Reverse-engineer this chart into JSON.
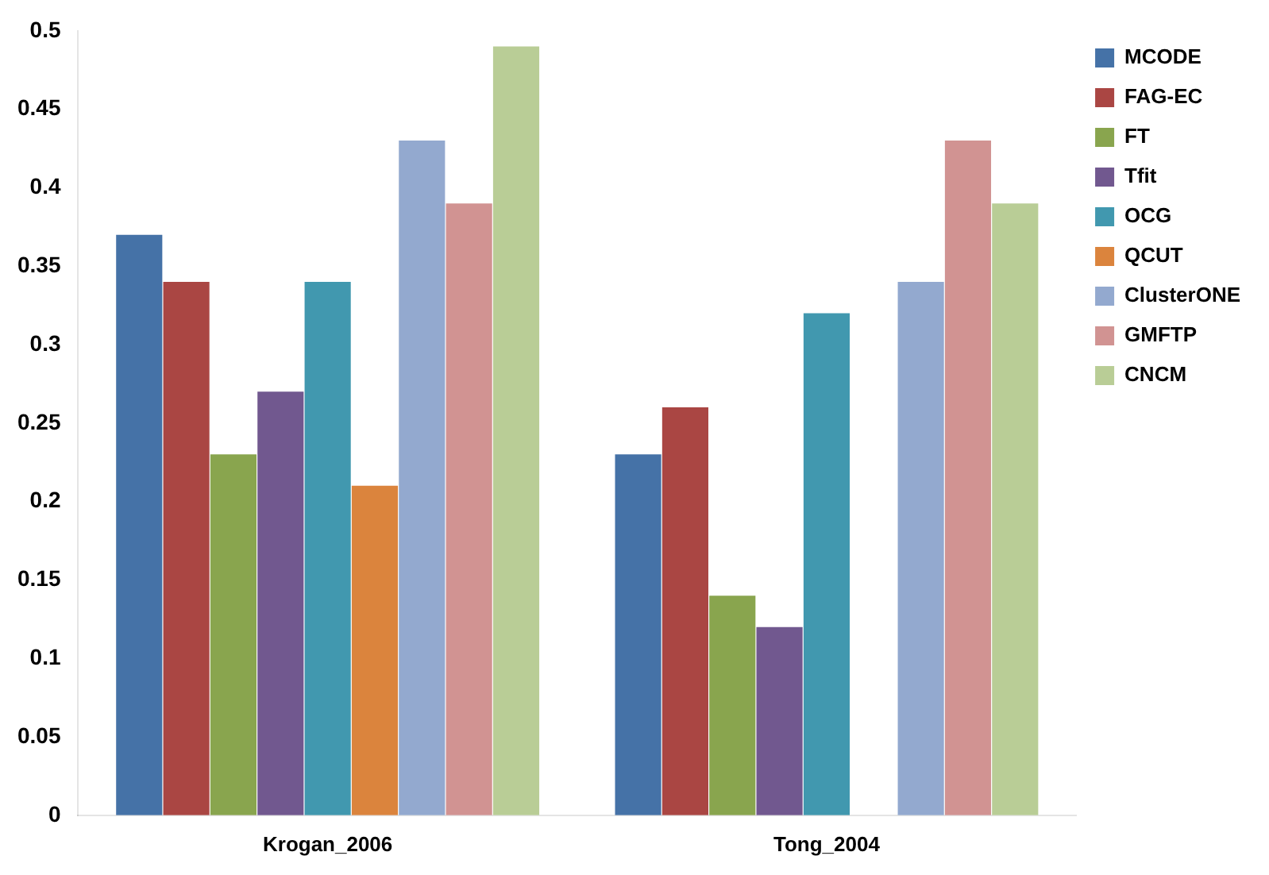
{
  "chart_data": {
    "type": "bar",
    "categories": [
      "Krogan_2006",
      "Tong_2004"
    ],
    "series": [
      {
        "name": "MCODE",
        "color": "#4572a7",
        "values": [
          0.37,
          0.23
        ]
      },
      {
        "name": "FAG-EC",
        "color": "#aa4643",
        "values": [
          0.34,
          0.26
        ]
      },
      {
        "name": "FT",
        "color": "#89a54e",
        "values": [
          0.23,
          0.14
        ]
      },
      {
        "name": "Tfit",
        "color": "#71588f",
        "values": [
          0.27,
          0.12
        ]
      },
      {
        "name": "OCG",
        "color": "#4198af",
        "values": [
          0.34,
          0.32
        ]
      },
      {
        "name": "QCUT",
        "color": "#db843d",
        "values": [
          0.21,
          0
        ]
      },
      {
        "name": "ClusterONE",
        "color": "#93a9cf",
        "values": [
          0.43,
          0.34
        ]
      },
      {
        "name": "GMFTP",
        "color": "#d19392",
        "values": [
          0.39,
          0.43
        ]
      },
      {
        "name": "CNCM",
        "color": "#b9cd96",
        "values": [
          0.49,
          0.39
        ]
      }
    ],
    "ylim": [
      0,
      0.5
    ],
    "yticks": [
      0,
      0.05,
      0.1,
      0.15,
      0.2,
      0.25,
      0.3,
      0.35,
      0.4,
      0.45,
      0.5
    ],
    "grid": false,
    "legend": "right"
  }
}
